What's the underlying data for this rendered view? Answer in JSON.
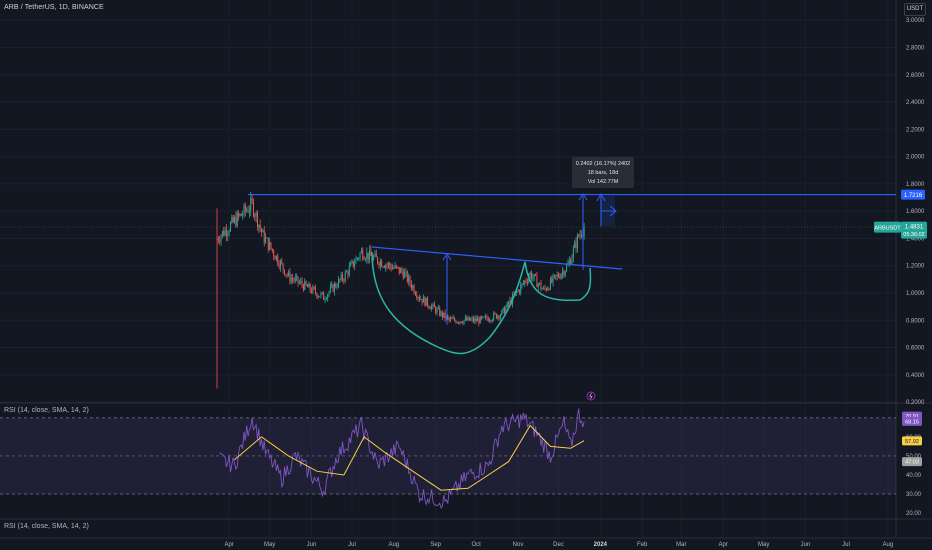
{
  "header": {
    "symbol": "ARB / TetherUS, 1D, BINANCE",
    "currency": "USDT"
  },
  "rsi_title": "RSI (14, close, SMA, 14, 2)",
  "rsi2_title": "RSI (14, close, SMA, 14, 2)",
  "price_axis": {
    "ticks": [
      0.2,
      0.4,
      0.6,
      0.8,
      1.0,
      1.2,
      1.4,
      1.6,
      1.8,
      2.0,
      2.2,
      2.4,
      2.6,
      2.8,
      3.0
    ],
    "tick_labels": [
      "0.2000",
      "0.4000",
      "0.6000",
      "0.8000",
      "1.0000",
      "1.2000",
      "1.4000",
      "1.6000",
      "1.8000",
      "2.0000",
      "2.2000",
      "2.4000",
      "2.6000",
      "2.8000",
      "3.0000"
    ],
    "resistance_label": "1.7216",
    "resistance_value": 1.7216,
    "last_symbol": "ARBUSDT",
    "last_price": "1.4831",
    "last_value": 1.4831,
    "countdown": "05:36:02"
  },
  "rsi_axis": {
    "ticks": [
      20,
      30,
      40,
      50,
      60,
      70
    ],
    "tick_labels": [
      "20.00",
      "30.00",
      "40.00",
      "50.00",
      "60.00",
      "70.00"
    ],
    "badges": [
      {
        "text": "70.91",
        "value": 70.91,
        "color": "#7e57c2"
      },
      {
        "text": "68.15",
        "value": 68.15,
        "color": "#7e57c2"
      },
      {
        "text": "57.92",
        "value": 57.92,
        "color": "#f7d046"
      },
      {
        "text": "47.03",
        "value": 47.03,
        "color": "#a0a0a0"
      }
    ]
  },
  "time_axis": {
    "labels": [
      "Apr",
      "May",
      "Jun",
      "Jul",
      "Aug",
      "Sep",
      "Oct",
      "Nov",
      "Dec",
      "2024",
      "Feb",
      "Mar",
      "Apr",
      "May",
      "Jun",
      "Jul",
      "Aug"
    ]
  },
  "measure_box": {
    "line1": "0.2402 (16.17%) 2402",
    "line2": "18 bars, 18d",
    "line3": "Vol 142.77M"
  },
  "colors": {
    "background": "#131722",
    "up": "#26a69a",
    "down": "#ef5350",
    "drawing": "#2962ff",
    "cup": "#2bb5a3",
    "rsi_line": "#7e57c2",
    "rsi_ma": "#f7d046"
  },
  "chart_data": [
    {
      "type": "candlestick",
      "title": "ARB / TetherUS, 1D, BINANCE",
      "ylim": [
        0.2,
        3.0
      ],
      "x_range": [
        "2023-03-23",
        "2024-08-10"
      ],
      "key_points": [
        {
          "date": "2023-03-23",
          "close": 1.4
        },
        {
          "date": "2023-04-18",
          "close": 1.65
        },
        {
          "date": "2023-04-26",
          "close": 1.42
        },
        {
          "date": "2023-05-15",
          "close": 1.12
        },
        {
          "date": "2023-06-10",
          "close": 0.97
        },
        {
          "date": "2023-06-25",
          "close": 1.12
        },
        {
          "date": "2023-07-08",
          "close": 1.3
        },
        {
          "date": "2023-08-08",
          "close": 1.15
        },
        {
          "date": "2023-08-20",
          "close": 0.97
        },
        {
          "date": "2023-09-11",
          "close": 0.8
        },
        {
          "date": "2023-10-05",
          "close": 0.8
        },
        {
          "date": "2023-10-20",
          "close": 0.85
        },
        {
          "date": "2023-11-10",
          "close": 1.14
        },
        {
          "date": "2023-11-20",
          "close": 1.02
        },
        {
          "date": "2023-12-08",
          "close": 1.2
        },
        {
          "date": "2023-12-16",
          "close": 1.42
        },
        {
          "date": "2023-12-20",
          "close": 1.48
        }
      ]
    },
    {
      "type": "line",
      "title": "RSI (14, close, SMA, 14, 2)",
      "ylim": [
        20,
        75
      ],
      "series": [
        {
          "name": "RSI",
          "points": [
            [
              "2023-03-25",
              48
            ],
            [
              "2023-04-05",
              45
            ],
            [
              "2023-04-18",
              70
            ],
            [
              "2023-04-28",
              52
            ],
            [
              "2023-05-10",
              38
            ],
            [
              "2023-05-20",
              50
            ],
            [
              "2023-06-10",
              32
            ],
            [
              "2023-06-20",
              50
            ],
            [
              "2023-07-08",
              66
            ],
            [
              "2023-07-20",
              45
            ],
            [
              "2023-08-05",
              55
            ],
            [
              "2023-08-20",
              30
            ],
            [
              "2023-09-08",
              26
            ],
            [
              "2023-09-25",
              40
            ],
            [
              "2023-10-10",
              45
            ],
            [
              "2023-10-20",
              65
            ],
            [
              "2023-11-05",
              70
            ],
            [
              "2023-11-15",
              62
            ],
            [
              "2023-11-25",
              50
            ],
            [
              "2023-12-05",
              67
            ],
            [
              "2023-12-10",
              55
            ],
            [
              "2023-12-16",
              72
            ],
            [
              "2023-12-20",
              68
            ]
          ]
        },
        {
          "name": "RSI-based MA",
          "points": [
            [
              "2023-04-05",
              48
            ],
            [
              "2023-04-25",
              60
            ],
            [
              "2023-05-15",
              50
            ],
            [
              "2023-06-05",
              42
            ],
            [
              "2023-06-25",
              40
            ],
            [
              "2023-07-10",
              60
            ],
            [
              "2023-07-25",
              52
            ],
            [
              "2023-08-15",
              42
            ],
            [
              "2023-09-05",
              32
            ],
            [
              "2023-09-25",
              33
            ],
            [
              "2023-10-10",
              40
            ],
            [
              "2023-10-25",
              47
            ],
            [
              "2023-11-10",
              66
            ],
            [
              "2023-11-25",
              55
            ],
            [
              "2023-12-10",
              54
            ],
            [
              "2023-12-20",
              58
            ]
          ]
        }
      ],
      "levels": [
        70,
        50,
        30
      ]
    }
  ]
}
